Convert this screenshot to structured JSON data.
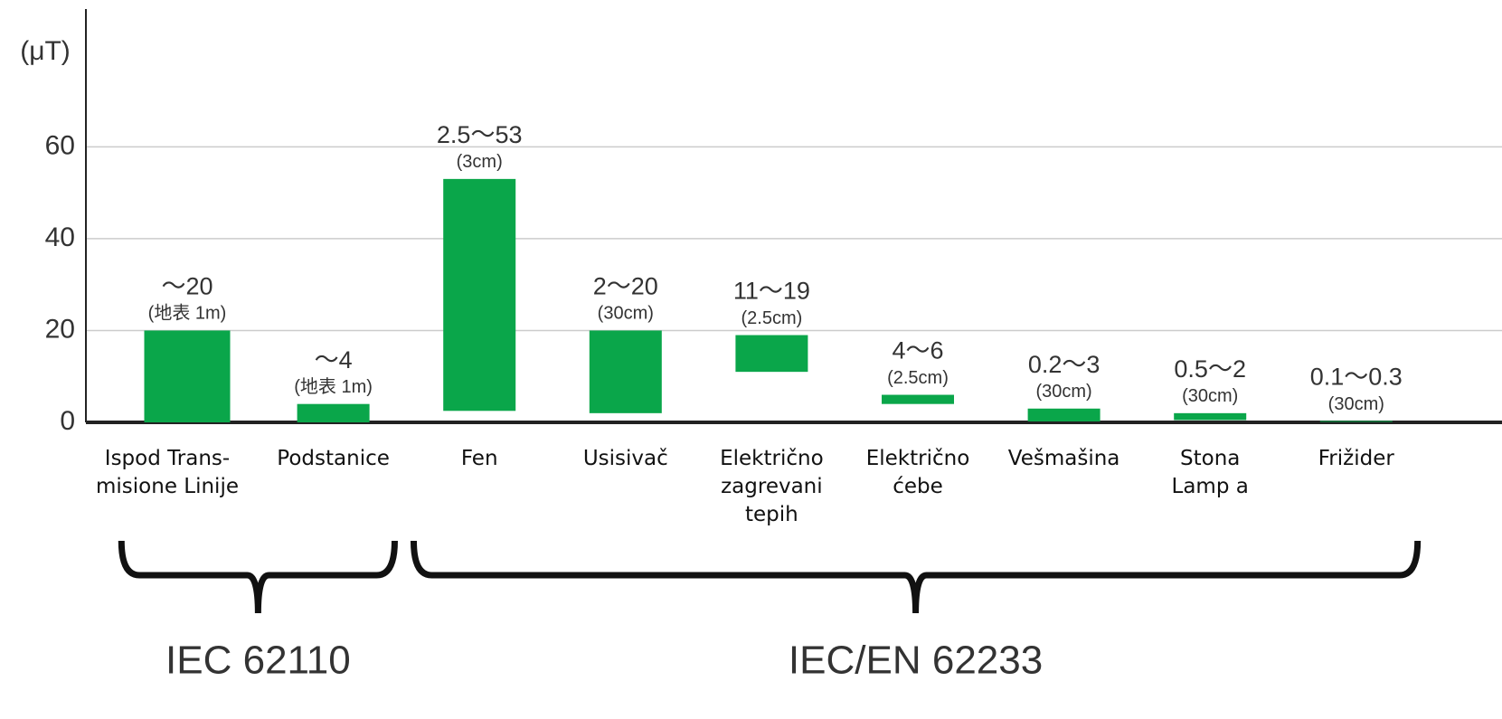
{
  "chart_data": {
    "type": "range_bar",
    "y_label": "(μT)",
    "categories": [
      "Ispod Trans-\nmisione Linije",
      "Podstanice",
      "Fen",
      "Usisivač",
      "Električno\nzagrevani\ntepih",
      "Električno\nćebe",
      "Vešmašina",
      "Stona\nLamp a",
      "Frižider"
    ],
    "low": [
      null,
      null,
      2.5,
      2,
      11,
      4,
      0.2,
      0.5,
      0.1
    ],
    "high": [
      20,
      4,
      53,
      20,
      19,
      6,
      3,
      2,
      0.3
    ],
    "value_labels": [
      "〜20",
      "〜4",
      "2.5〜53",
      "2〜20",
      "11〜19",
      "4〜6",
      "0.2〜3",
      "0.5〜2",
      "0.1〜0.3"
    ],
    "notes": [
      "(地表 1m)",
      "(地表 1m)",
      "(3cm)",
      "(30cm)",
      "(2.5cm)",
      "(2.5cm)",
      "(30cm)",
      "(30cm)",
      "(30cm)"
    ],
    "color": "#0aa64a",
    "ylim": [
      0,
      90
    ],
    "yticks": [
      0,
      20,
      40,
      60
    ],
    "grid": true,
    "groups": [
      {
        "name": "IEC 62110",
        "members": [
          "Ispod Trans-\nmisione Linije",
          "Podstanice"
        ]
      },
      {
        "name": "IEC/EN 62233",
        "members": [
          "Fen",
          "Usisivač",
          "Električno\nzagrevani\ntepih",
          "Električno\nćebe",
          "Vešmašina",
          "Stona\nLamp a",
          "Frižider"
        ]
      }
    ]
  }
}
